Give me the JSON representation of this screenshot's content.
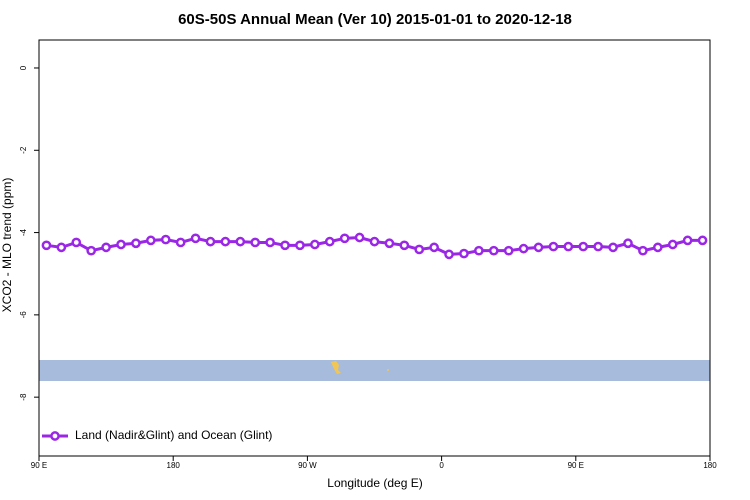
{
  "chart_data": {
    "type": "line",
    "title": "60S-50S Annual Mean (Ver 10)   2015-01-01 to 2020-12-18",
    "x_label": "Longitude (deg E)",
    "y_label": "XCO2 - MLO trend (ppm)",
    "xlim": [
      -270,
      180
    ],
    "xticks": [
      {
        "value": -270,
        "label": "90 E"
      },
      {
        "value": -180,
        "label": "180"
      },
      {
        "value": -90,
        "label": "90 W"
      },
      0,
      {
        "value": 90,
        "label": "90 E"
      },
      {
        "value": 180,
        "label": "180"
      }
    ],
    "ylim": [
      -9.43,
      0.68
    ],
    "yticks": [
      0,
      -2,
      -4,
      -6,
      -8
    ],
    "x": [
      -265,
      -255,
      -245,
      -235,
      -225,
      -215,
      -205,
      -195,
      -185,
      -175,
      -165,
      -155,
      -145,
      -135,
      -125,
      -115,
      -105,
      -95,
      -85,
      -75,
      -65,
      -55,
      -45,
      -35,
      -25,
      -15,
      -5,
      5,
      15,
      25,
      35,
      45,
      55,
      65,
      75,
      85,
      95,
      105,
      115,
      125,
      135,
      145,
      155,
      165,
      175
    ],
    "series": [
      {
        "name": "Land (Nadir&Glint) and Ocean (Glint)",
        "color": "#9b27e6",
        "values": [
          -4.31,
          -4.36,
          -4.24,
          -4.44,
          -4.36,
          -4.29,
          -4.26,
          -4.19,
          -4.17,
          -4.24,
          -4.14,
          -4.22,
          -4.22,
          -4.22,
          -4.24,
          -4.24,
          -4.31,
          -4.31,
          -4.29,
          -4.22,
          -4.14,
          -4.12,
          -4.22,
          -4.26,
          -4.31,
          -4.41,
          -4.36,
          -4.53,
          -4.51,
          -4.44,
          -4.44,
          -4.44,
          -4.39,
          -4.36,
          -4.34,
          -4.34,
          -4.34,
          -4.34,
          -4.36,
          -4.26,
          -4.44,
          -4.36,
          -4.29,
          -4.19,
          -4.19
        ]
      }
    ],
    "legend": "bottom-left"
  }
}
